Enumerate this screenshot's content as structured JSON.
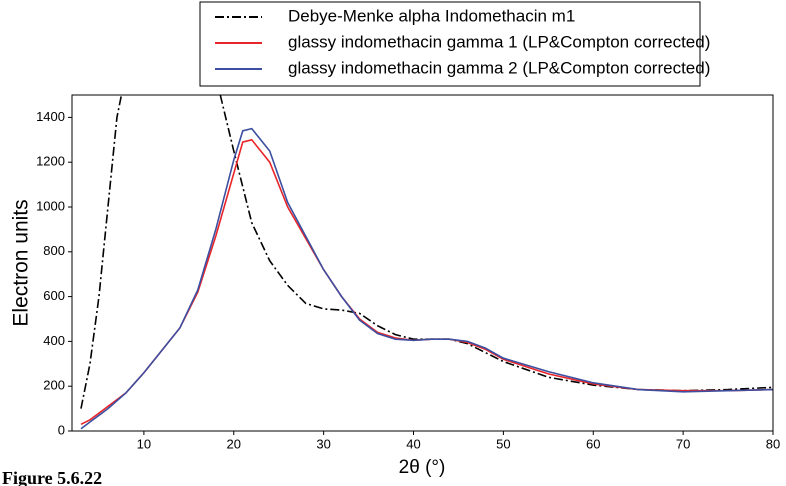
{
  "chart_data": {
    "type": "line",
    "x_label": "2θ (°)",
    "y_label": "Electron units",
    "caption": "Figure 5.6.22",
    "xlim": [
      2,
      80
    ],
    "xticks": [
      10,
      20,
      30,
      40,
      50,
      60,
      70,
      80
    ],
    "ylim": [
      0,
      1500
    ],
    "yticks": [
      0,
      200,
      400,
      600,
      800,
      1000,
      1200,
      1400
    ],
    "legend": "top",
    "series": [
      {
        "name": "Debye-Menke alpha Indomethacin m1",
        "color": "#000000",
        "dash": "dashdot",
        "x": [
          3,
          4,
          5,
          6,
          7,
          7.5,
          12,
          18.5,
          20,
          22,
          24,
          26,
          28,
          30,
          32,
          34,
          36,
          38,
          40,
          42,
          44,
          46,
          48,
          50,
          55,
          60,
          65,
          70,
          75,
          80
        ],
        "values": [
          100,
          300,
          600,
          1000,
          1400,
          1500,
          null,
          1500,
          1250,
          930,
          760,
          650,
          570,
          545,
          540,
          525,
          470,
          430,
          410,
          410,
          410,
          390,
          350,
          310,
          240,
          205,
          185,
          180,
          185,
          195
        ]
      },
      {
        "name": "glassy indomethacin gamma 1 (LP&Compton corrected)",
        "color": "#e8262a",
        "x": [
          3,
          4,
          5,
          6,
          7,
          8,
          10,
          12,
          14,
          16,
          18,
          20,
          21,
          22,
          24,
          26,
          28,
          30,
          32,
          34,
          36,
          38,
          40,
          42,
          44,
          46,
          48,
          50,
          55,
          60,
          65,
          70,
          75,
          80
        ],
        "values": [
          30,
          50,
          80,
          110,
          140,
          170,
          260,
          360,
          460,
          620,
          870,
          1150,
          1290,
          1300,
          1200,
          1000,
          860,
          720,
          600,
          500,
          440,
          415,
          405,
          410,
          410,
          395,
          365,
          320,
          255,
          210,
          185,
          180,
          180,
          185
        ]
      },
      {
        "name": "glassy indomethacin gamma 2 (LP&Compton corrected)",
        "color": "#3c4fa0",
        "x": [
          3,
          4,
          5,
          6,
          7,
          8,
          10,
          12,
          14,
          16,
          18,
          20,
          21,
          22,
          24,
          26,
          28,
          30,
          32,
          34,
          36,
          38,
          40,
          42,
          44,
          46,
          48,
          50,
          55,
          60,
          65,
          70,
          75,
          80
        ],
        "values": [
          10,
          40,
          70,
          100,
          135,
          170,
          260,
          360,
          460,
          630,
          900,
          1210,
          1340,
          1350,
          1250,
          1020,
          870,
          720,
          600,
          495,
          435,
          410,
          405,
          410,
          410,
          400,
          370,
          325,
          265,
          215,
          185,
          175,
          180,
          185
        ]
      }
    ]
  }
}
